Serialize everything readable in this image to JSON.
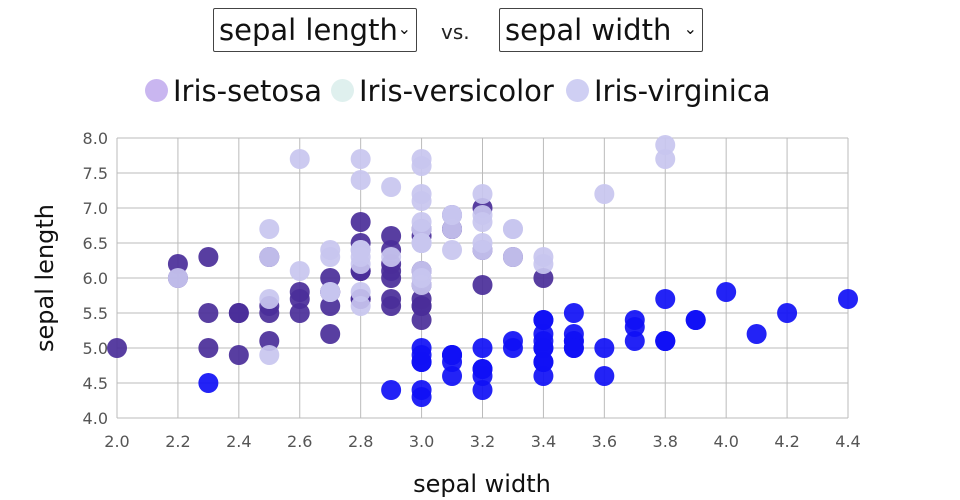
{
  "controls": {
    "y_select": "sepal length",
    "x_select": "sepal width",
    "vs": "vs."
  },
  "colors": {
    "Iris-setosa": "#1010f5",
    "Iris-versicolor": "#4a2e99",
    "Iris-virginica": "#c8c6ef",
    "grid": "#bbbbbb"
  },
  "chart_data": {
    "type": "scatter",
    "title": "",
    "xlabel": "sepal width",
    "ylabel": "sepal length",
    "xlim": [
      2.0,
      4.4
    ],
    "ylim": [
      4.0,
      8.0
    ],
    "xticks": [
      "2.0",
      "2.2",
      "2.4",
      "2.6",
      "2.8",
      "3.0",
      "3.2",
      "3.4",
      "3.6",
      "3.8",
      "4.0",
      "4.2",
      "4.4"
    ],
    "yticks": [
      "4.0",
      "4.5",
      "5.0",
      "5.5",
      "6.0",
      "6.5",
      "7.0",
      "7.5",
      "8.0"
    ],
    "legend": [
      {
        "name": "Iris-setosa",
        "swatch": "#c9b6f0"
      },
      {
        "name": "Iris-versicolor",
        "swatch": "#dff0ee"
      },
      {
        "name": "Iris-virginica",
        "swatch": "#cfcff3"
      }
    ],
    "series": [
      {
        "name": "Iris-setosa",
        "color": "#1010f5",
        "points": [
          [
            3.5,
            5.1
          ],
          [
            3.0,
            4.9
          ],
          [
            3.2,
            4.7
          ],
          [
            3.1,
            4.6
          ],
          [
            3.6,
            5.0
          ],
          [
            3.9,
            5.4
          ],
          [
            3.4,
            4.6
          ],
          [
            3.4,
            5.0
          ],
          [
            2.9,
            4.4
          ],
          [
            3.1,
            4.9
          ],
          [
            3.7,
            5.4
          ],
          [
            3.4,
            4.8
          ],
          [
            3.0,
            4.8
          ],
          [
            3.0,
            4.3
          ],
          [
            4.0,
            5.8
          ],
          [
            4.4,
            5.7
          ],
          [
            3.9,
            5.4
          ],
          [
            3.5,
            5.1
          ],
          [
            3.8,
            5.7
          ],
          [
            3.8,
            5.1
          ],
          [
            3.4,
            5.4
          ],
          [
            3.7,
            5.1
          ],
          [
            3.6,
            4.6
          ],
          [
            3.3,
            5.1
          ],
          [
            3.4,
            4.8
          ],
          [
            3.0,
            5.0
          ],
          [
            3.4,
            5.0
          ],
          [
            3.5,
            5.2
          ],
          [
            3.4,
            5.2
          ],
          [
            3.2,
            4.7
          ],
          [
            3.1,
            4.8
          ],
          [
            3.4,
            5.4
          ],
          [
            4.1,
            5.2
          ],
          [
            4.2,
            5.5
          ],
          [
            3.1,
            4.9
          ],
          [
            3.2,
            5.0
          ],
          [
            3.5,
            5.5
          ],
          [
            3.1,
            4.9
          ],
          [
            3.0,
            4.4
          ],
          [
            3.4,
            5.1
          ],
          [
            3.5,
            5.0
          ],
          [
            2.3,
            4.5
          ],
          [
            3.2,
            4.4
          ],
          [
            3.5,
            5.0
          ],
          [
            3.8,
            5.1
          ],
          [
            3.0,
            4.8
          ],
          [
            3.8,
            5.1
          ],
          [
            3.2,
            4.6
          ],
          [
            3.7,
            5.3
          ],
          [
            3.3,
            5.0
          ]
        ]
      },
      {
        "name": "Iris-versicolor",
        "color": "#4a2e99",
        "points": [
          [
            3.2,
            7.0
          ],
          [
            3.2,
            6.4
          ],
          [
            3.1,
            6.9
          ],
          [
            2.3,
            5.5
          ],
          [
            2.8,
            6.5
          ],
          [
            2.8,
            5.7
          ],
          [
            3.3,
            6.3
          ],
          [
            2.4,
            4.9
          ],
          [
            2.9,
            6.6
          ],
          [
            2.7,
            5.2
          ],
          [
            2.0,
            5.0
          ],
          [
            3.0,
            5.9
          ],
          [
            2.2,
            6.0
          ],
          [
            2.9,
            6.1
          ],
          [
            2.9,
            5.6
          ],
          [
            3.1,
            6.7
          ],
          [
            3.0,
            5.6
          ],
          [
            2.7,
            5.8
          ],
          [
            2.2,
            6.2
          ],
          [
            2.5,
            5.6
          ],
          [
            3.2,
            5.9
          ],
          [
            2.8,
            6.1
          ],
          [
            2.5,
            6.3
          ],
          [
            2.8,
            6.1
          ],
          [
            2.9,
            6.4
          ],
          [
            3.0,
            6.6
          ],
          [
            2.8,
            6.8
          ],
          [
            3.0,
            6.7
          ],
          [
            2.9,
            6.0
          ],
          [
            2.6,
            5.7
          ],
          [
            2.4,
            5.5
          ],
          [
            2.4,
            5.5
          ],
          [
            2.7,
            5.8
          ],
          [
            2.7,
            6.0
          ],
          [
            3.0,
            5.4
          ],
          [
            3.4,
            6.0
          ],
          [
            3.1,
            6.7
          ],
          [
            2.3,
            6.3
          ],
          [
            3.0,
            5.6
          ],
          [
            2.5,
            5.5
          ],
          [
            2.6,
            5.5
          ],
          [
            3.0,
            6.1
          ],
          [
            2.6,
            5.8
          ],
          [
            2.3,
            5.0
          ],
          [
            2.7,
            5.6
          ],
          [
            3.0,
            5.7
          ],
          [
            2.9,
            5.7
          ],
          [
            2.9,
            6.2
          ],
          [
            2.5,
            5.1
          ],
          [
            2.8,
            5.7
          ]
        ]
      },
      {
        "name": "Iris-virginica",
        "color": "#c8c6ef",
        "points": [
          [
            3.3,
            6.3
          ],
          [
            2.7,
            5.8
          ],
          [
            3.0,
            7.1
          ],
          [
            2.9,
            6.3
          ],
          [
            3.0,
            6.5
          ],
          [
            3.0,
            7.6
          ],
          [
            2.5,
            4.9
          ],
          [
            2.9,
            7.3
          ],
          [
            2.5,
            6.7
          ],
          [
            3.6,
            7.2
          ],
          [
            3.2,
            6.5
          ],
          [
            2.7,
            6.4
          ],
          [
            3.0,
            6.8
          ],
          [
            2.5,
            5.7
          ],
          [
            2.8,
            5.8
          ],
          [
            3.2,
            6.4
          ],
          [
            3.0,
            6.5
          ],
          [
            3.8,
            7.7
          ],
          [
            2.6,
            7.7
          ],
          [
            2.2,
            6.0
          ],
          [
            3.2,
            6.9
          ],
          [
            2.8,
            5.6
          ],
          [
            2.8,
            7.7
          ],
          [
            2.7,
            6.3
          ],
          [
            3.3,
            6.7
          ],
          [
            3.2,
            7.2
          ],
          [
            2.8,
            6.2
          ],
          [
            3.0,
            6.1
          ],
          [
            2.8,
            6.4
          ],
          [
            3.0,
            7.2
          ],
          [
            2.8,
            7.4
          ],
          [
            3.8,
            7.9
          ],
          [
            2.8,
            6.4
          ],
          [
            2.8,
            6.3
          ],
          [
            2.6,
            6.1
          ],
          [
            3.0,
            7.7
          ],
          [
            3.4,
            6.3
          ],
          [
            3.1,
            6.4
          ],
          [
            3.0,
            6.0
          ],
          [
            3.1,
            6.9
          ],
          [
            3.1,
            6.7
          ],
          [
            3.1,
            6.9
          ],
          [
            2.7,
            5.8
          ],
          [
            3.2,
            6.8
          ],
          [
            3.3,
            6.7
          ],
          [
            3.0,
            6.7
          ],
          [
            2.5,
            6.3
          ],
          [
            3.0,
            6.5
          ],
          [
            3.4,
            6.2
          ],
          [
            3.0,
            5.9
          ]
        ]
      }
    ]
  }
}
